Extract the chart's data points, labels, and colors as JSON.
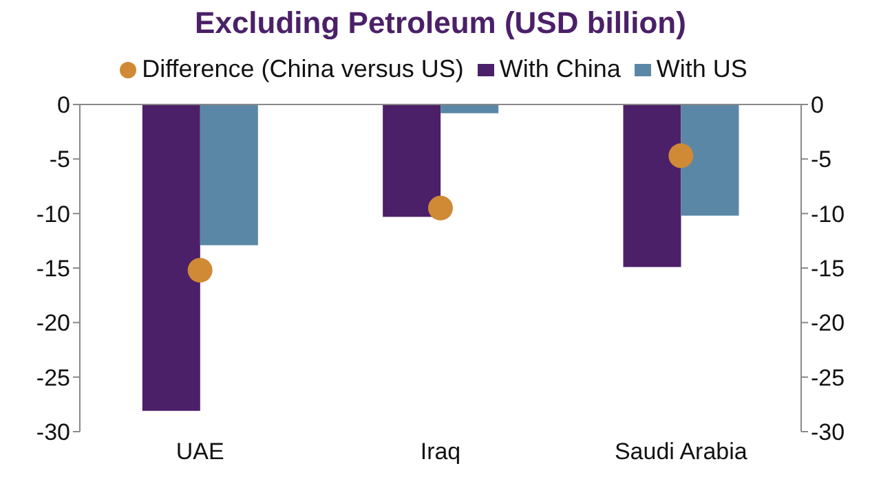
{
  "chart_data": {
    "type": "bar",
    "title": "Excluding Petroleum (USD billion)",
    "categories": [
      "UAE",
      "Iraq",
      "Saudi Arabia"
    ],
    "series": [
      {
        "name": "With China",
        "color": "#4b2068",
        "values": [
          -28.1,
          -10.3,
          -14.9
        ]
      },
      {
        "name": "With US",
        "color": "#5a87a6",
        "values": [
          -12.9,
          -0.8,
          -10.2
        ]
      },
      {
        "name": "Difference (China versus US)",
        "type": "scatter",
        "color": "#d08a35",
        "values": [
          -15.2,
          -9.5,
          -4.7
        ]
      }
    ],
    "ylim": [
      -30,
      0
    ],
    "yticks": [
      0,
      -5,
      -10,
      -15,
      -20,
      -25,
      -30
    ],
    "y2lim": [
      -30,
      0
    ],
    "y2ticks": [
      0,
      -5,
      -10,
      -15,
      -20,
      -25,
      -30
    ],
    "grid": false,
    "legend": "top",
    "marker": "circle"
  }
}
